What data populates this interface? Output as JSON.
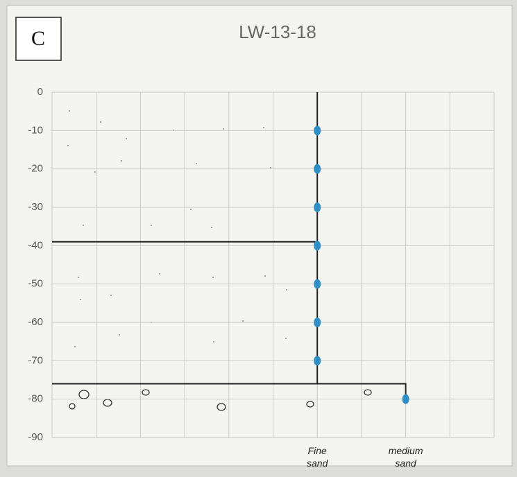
{
  "chart_data": {
    "type": "scatter",
    "title": "LW-13-18",
    "panel_label": "C",
    "xlim": [
      0,
      10
    ],
    "ylim": [
      -90,
      0
    ],
    "xticks": [
      {
        "value": 0,
        "label": null
      },
      {
        "value": 1,
        "label": null
      },
      {
        "value": 2,
        "label": null
      },
      {
        "value": 3,
        "label": null
      },
      {
        "value": 4,
        "label": null
      },
      {
        "value": 5,
        "label": null
      },
      {
        "value": 6,
        "label": "Fine sand"
      },
      {
        "value": 7,
        "label": null
      },
      {
        "value": 8,
        "label": "medium sand"
      },
      {
        "value": 9,
        "label": null
      },
      {
        "value": 10,
        "label": null
      }
    ],
    "yticks": [
      0,
      -10,
      -20,
      -30,
      -40,
      -50,
      -60,
      -70,
      -80,
      -90
    ],
    "grid": true,
    "series": [
      {
        "color": "#2f8ec4",
        "x": [
          6,
          6,
          6,
          6,
          6,
          6,
          6,
          8
        ],
        "values": [
          -10,
          -20,
          -30,
          -40,
          -50,
          -60,
          -70,
          -80
        ]
      }
    ],
    "lines": [
      {
        "color": "#222222",
        "x": [
          0,
          6
        ],
        "y": [
          -39,
          -39
        ]
      },
      {
        "color": "#222222",
        "x": [
          6,
          6
        ],
        "y": [
          0,
          -76
        ]
      },
      {
        "color": "#222222",
        "x": [
          0,
          8,
          8
        ],
        "y": [
          -76,
          -76,
          -80
        ]
      }
    ]
  }
}
